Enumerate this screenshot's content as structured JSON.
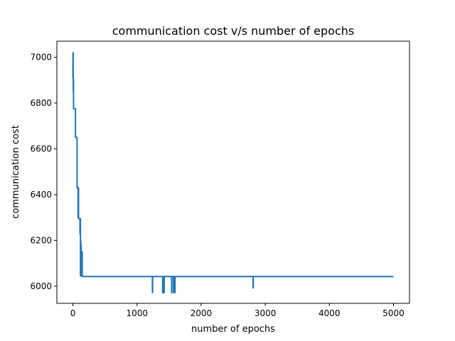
{
  "chart_data": {
    "type": "line",
    "title": "communication cost v/s number of epochs",
    "xlabel": "number of epochs",
    "ylabel": "communication cost",
    "xlim": [
      -250,
      5250
    ],
    "ylim": [
      5925,
      7070
    ],
    "xticks": [
      0,
      1000,
      2000,
      3000,
      4000,
      5000
    ],
    "yticks": [
      6000,
      6200,
      6400,
      6600,
      6800,
      7000
    ],
    "grid": false,
    "legend": "none",
    "series": [
      {
        "color": "#1f77b4",
        "x": [
          0,
          2,
          3,
          4,
          5,
          6,
          7,
          10,
          10,
          12,
          12,
          40,
          40,
          65,
          65,
          80,
          80,
          83,
          83,
          88,
          88,
          95,
          95,
          110,
          110,
          112,
          112,
          118,
          118,
          120,
          120,
          123,
          123,
          126,
          126,
          130,
          130,
          140,
          140,
          145,
          145,
          150,
          150,
          1240,
          1240,
          1243,
          1243,
          1400,
          1400,
          1403,
          1403,
          1410,
          1410,
          1413,
          1413,
          1420,
          1420,
          1423,
          1423,
          1540,
          1540,
          1543,
          1543,
          1570,
          1570,
          1573,
          1573,
          1590,
          1590,
          1593,
          1593,
          2810,
          2810,
          2813,
          2813,
          5000
        ],
        "y": [
          6910,
          7015,
          6910,
          7020,
          6910,
          6850,
          6905,
          6905,
          6775,
          6775,
          6775,
          6775,
          6650,
          6650,
          6430,
          6430,
          6300,
          6300,
          6430,
          6430,
          6295,
          6295,
          6295,
          6295,
          6230,
          6230,
          6295,
          6295,
          6045,
          6045,
          6200,
          6200,
          6045,
          6045,
          6180,
          6180,
          6045,
          6045,
          6150,
          6150,
          6045,
          6045,
          6042,
          6042,
          5972,
          5972,
          6042,
          6042,
          5972,
          5972,
          6042,
          6042,
          5972,
          5972,
          6042,
          6042,
          5972,
          5972,
          6042,
          6042,
          5972,
          5972,
          6042,
          6042,
          5972,
          5972,
          6042,
          6042,
          5972,
          5972,
          6042,
          6042,
          5992,
          5992,
          6042,
          6042
        ]
      }
    ]
  }
}
